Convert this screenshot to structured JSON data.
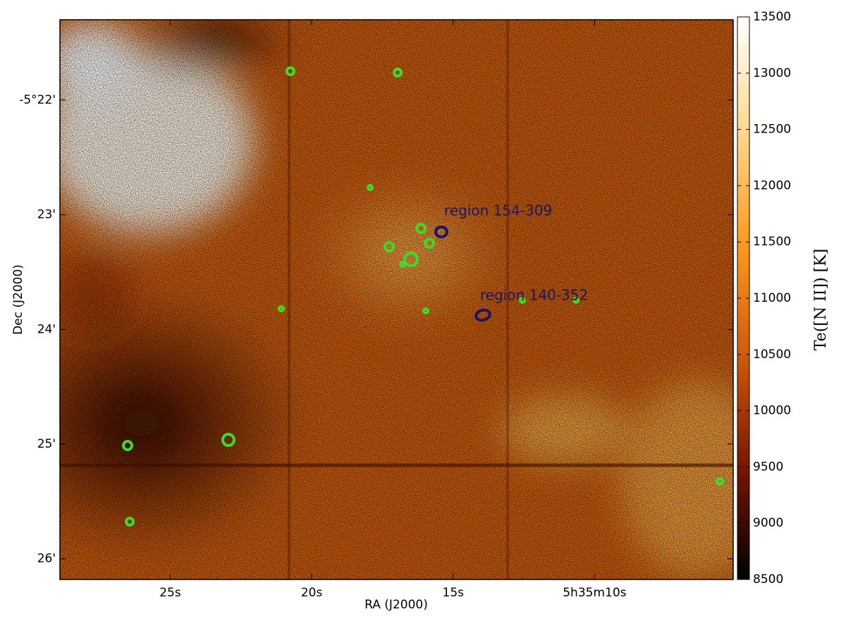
{
  "chart_data": {
    "type": "image",
    "xlabel": "RA (J2000)",
    "ylabel": "Dec (J2000)",
    "xlim": [
      28.9,
      5.1
    ],
    "xticks": [
      {
        "value": 25,
        "label": "25s"
      },
      {
        "value": 20,
        "label": "20s"
      },
      {
        "value": 15,
        "label": "15s"
      },
      {
        "value": 10,
        "label": "5h35m10s"
      }
    ],
    "ylim": [
      21.3,
      26.18
    ],
    "yticks": [
      {
        "value": 22,
        "label": "-5°22'"
      },
      {
        "value": 23,
        "label": "23'"
      },
      {
        "value": 24,
        "label": "24'"
      },
      {
        "value": 25,
        "label": "25'"
      },
      {
        "value": 26,
        "label": "26'"
      }
    ],
    "colorbar_label": "Te([N II]) [K]",
    "zlim": [
      8500,
      13500
    ],
    "zticks": [
      8500,
      9000,
      9500,
      10000,
      10500,
      11000,
      11500,
      12000,
      12500,
      13000,
      13500
    ],
    "colormap": [
      "#000000",
      "#7a1600",
      "#d25a08",
      "#ff9a1e",
      "#ffd890",
      "#ffffff"
    ],
    "annotations": [
      "region 154-309",
      "region 140-352"
    ]
  }
}
